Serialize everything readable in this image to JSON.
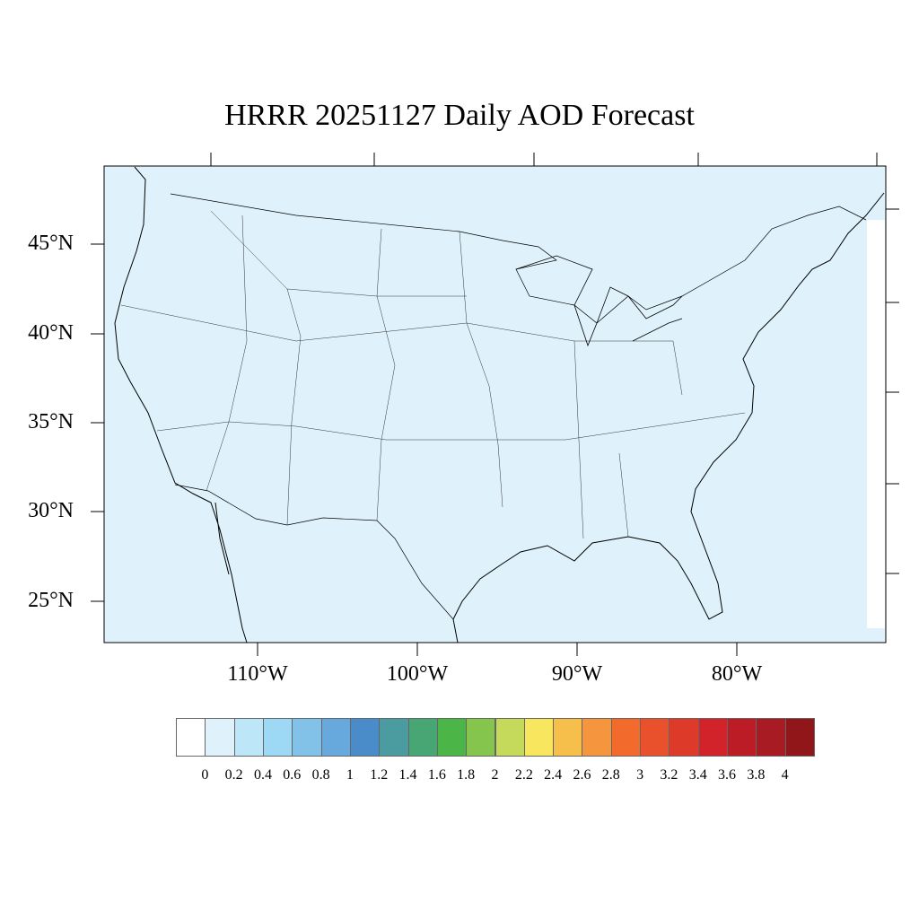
{
  "title": "HRRR 20251127 Daily AOD Forecast",
  "map": {
    "background_color": "#dff2fb",
    "lat_labels": [
      "45°N",
      "40°N",
      "35°N",
      "30°N",
      "25°N"
    ],
    "lon_labels": [
      "110°W",
      "100°W",
      "90°W",
      "80°W"
    ]
  },
  "colorbar": {
    "colors": [
      "#ffffff",
      "#dff2fb",
      "#bde6f8",
      "#9dd8f4",
      "#82c1e8",
      "#67a9dc",
      "#4a8bc9",
      "#4a9ca1",
      "#48a674",
      "#4bb548",
      "#85c54e",
      "#c5d95a",
      "#f8e75e",
      "#f6bf4c",
      "#f5953d",
      "#f26a2c",
      "#e8512b",
      "#dd3a29",
      "#d2232a",
      "#bb1c25",
      "#a81b22",
      "#911619"
    ],
    "labels": [
      "0",
      "0.2",
      "0.4",
      "0.6",
      "0.8",
      "1",
      "1.2",
      "1.4",
      "1.6",
      "1.8",
      "2",
      "2.2",
      "2.4",
      "2.6",
      "2.8",
      "3",
      "3.2",
      "3.4",
      "3.6",
      "3.8",
      "4"
    ]
  }
}
